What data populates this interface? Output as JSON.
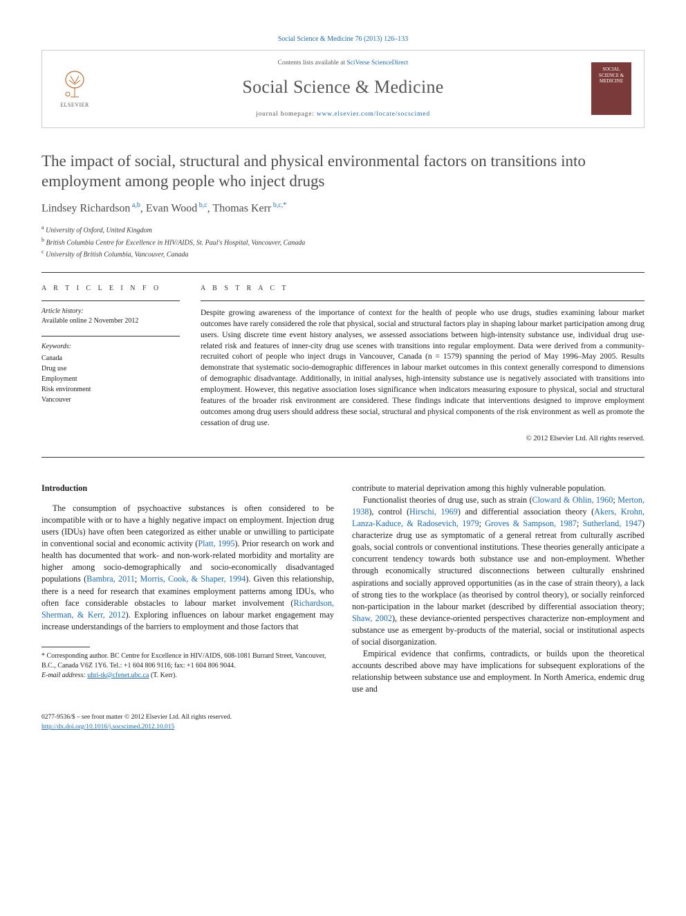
{
  "citation": "Social Science & Medicine 76 (2013) 126–133",
  "header": {
    "elsevier_label": "ELSEVIER",
    "contents_prefix": "Contents lists available at ",
    "contents_link": "SciVerse ScienceDirect",
    "journal_name": "Social Science & Medicine",
    "homepage_prefix": "journal homepage: ",
    "homepage_url": "www.elsevier.com/locate/socscimed",
    "cover_text": "SOCIAL SCIENCE & MEDICINE"
  },
  "title": "The impact of social, structural and physical environmental factors on transitions into employment among people who inject drugs",
  "authors_html": "Lindsey Richardson<sup> a,b</sup>, Evan Wood<sup> b,c</sup>, Thomas Kerr<sup> b,c,*</sup>",
  "affiliations": [
    {
      "sup": "a",
      "text": "University of Oxford, United Kingdom"
    },
    {
      "sup": "b",
      "text": "British Columbia Centre for Excellence in HIV/AIDS, St. Paul's Hospital, Vancouver, Canada"
    },
    {
      "sup": "c",
      "text": "University of British Columbia, Vancouver, Canada"
    }
  ],
  "info": {
    "heading": "A R T I C L E   I N F O",
    "history_label": "Article history:",
    "history_value": "Available online 2 November 2012",
    "keywords_label": "Keywords:",
    "keywords": [
      "Canada",
      "Drug use",
      "Employment",
      "Risk environment",
      "Vancouver"
    ]
  },
  "abstract": {
    "heading": "A B S T R A C T",
    "text": "Despite growing awareness of the importance of context for the health of people who use drugs, studies examining labour market outcomes have rarely considered the role that physical, social and structural factors play in shaping labour market participation among drug users. Using discrete time event history analyses, we assessed associations between high-intensity substance use, individual drug use-related risk and features of inner-city drug use scenes with transitions into regular employment. Data were derived from a community-recruited cohort of people who inject drugs in Vancouver, Canada (n = 1579) spanning the period of May 1996–May 2005. Results demonstrate that systematic socio-demographic differences in labour market outcomes in this context generally correspond to dimensions of demographic disadvantage. Additionally, in initial analyses, high-intensity substance use is negatively associated with transitions into employment. However, this negative association loses significance when indicators measuring exposure to physical, social and structural features of the broader risk environment are considered. These findings indicate that interventions designed to improve employment outcomes among drug users should address these social, structural and physical components of the risk environment as well as promote the cessation of drug use.",
    "copyright": "© 2012 Elsevier Ltd. All rights reserved."
  },
  "body": {
    "section_title": "Introduction",
    "left_p1_parts": [
      "The consumption of psychoactive substances is often considered to be incompatible with or to have a highly negative impact on employment. Injection drug users (IDUs) have often been categorized as either unable or unwilling to participate in conventional social and economic activity (",
      "Platt, 1995",
      "). Prior research on work and health has documented that work- and non-work-related morbidity and mortality are higher among socio-demographically and socio-economically disadvantaged populations (",
      "Bambra, 2011",
      "; ",
      "Morris, Cook, & Shaper, 1994",
      "). Given this relationship, there is a need for research that examines employment patterns among IDUs, who often face considerable obstacles to labour market involvement (",
      "Richardson, Sherman, & Kerr, 2012",
      "). Exploring influences on labour market engagement may increase understandings of the barriers to employment and those factors that"
    ],
    "right_p0": "contribute to material deprivation among this highly vulnerable population.",
    "right_p1_parts": [
      "Functionalist theories of drug use, such as strain (",
      "Cloward & Ohlin, 1960",
      "; ",
      "Merton, 1938",
      "), control (",
      "Hirschi, 1969",
      ") and differential association theory (",
      "Akers, Krohn, Lanza-Kaduce, & Radosevich, 1979",
      "; ",
      "Groves & Sampson, 1987",
      "; ",
      "Sutherland, 1947",
      ") characterize drug use as symptomatic of a general retreat from culturally ascribed goals, social controls or conventional institutions. These theories generally anticipate a concurrent tendency towards both substance use and non-employment. Whether through economically structured disconnections between culturally enshrined aspirations and socially approved opportunities (as in the case of strain theory), a lack of strong ties to the workplace (as theorised by control theory), or socially reinforced non-participation in the labour market (described by differential association theory; ",
      "Shaw, 2002",
      "), these deviance-oriented perspectives characterize non-employment and substance use as emergent by-products of the material, social or institutional aspects of social disorganization."
    ],
    "right_p2": "Empirical evidence that confirms, contradicts, or builds upon the theoretical accounts described above may have implications for subsequent explorations of the relationship between substance use and employment. In North America, endemic drug use and"
  },
  "footnotes": {
    "corresponding": "* Corresponding author. BC Centre for Excellence in HIV/AIDS, 608-1081 Burrard Street, Vancouver, B.C., Canada V6Z 1Y6. Tel.: +1 604 806 9116; fax: +1 604 806 9044.",
    "email_label": "E-mail address: ",
    "email": "uhri-tk@cfenet.ubc.ca",
    "email_tail": " (T. Kerr)."
  },
  "bottom": {
    "line1": "0277-9536/$ – see front matter © 2012 Elsevier Ltd. All rights reserved.",
    "doi": "http://dx.doi.org/10.1016/j.socscimed.2012.10.015"
  },
  "colors": {
    "link": "#1a6bb5",
    "text": "#1a1a1a",
    "muted": "#555555",
    "rule": "#333333",
    "cover_bg": "#7a3a3a"
  },
  "typography": {
    "title_pt": 23,
    "journal_name_pt": 26,
    "body_pt": 12,
    "abstract_pt": 11.5,
    "footnote_pt": 10
  }
}
